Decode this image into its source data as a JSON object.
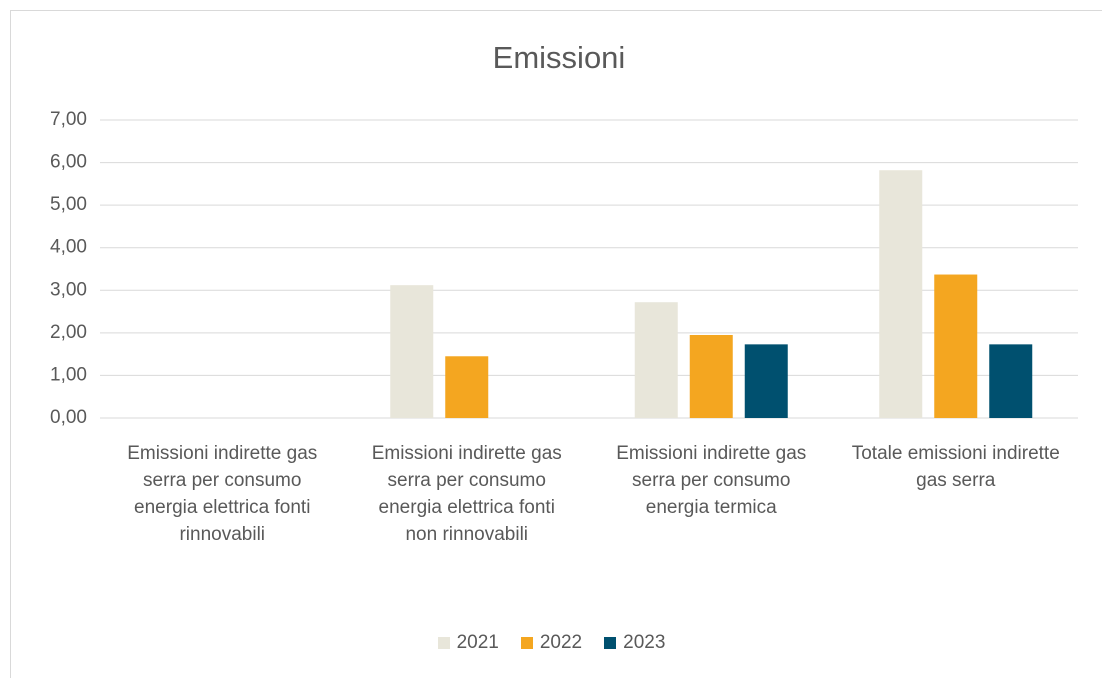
{
  "chart_data": {
    "type": "bar",
    "title": "Emissioni",
    "categories": [
      "Emissioni indirette gas serra per consumo energia elettrica fonti rinnovabili",
      "Emissioni indirette gas serra per consumo energia elettrica fonti non rinnovabili",
      "Emissioni indirette gas serra per consumo energia termica",
      "Totale emissioni indirette gas serra"
    ],
    "series": [
      {
        "name": "2021",
        "color": "#e8e6da",
        "values": [
          0,
          3.12,
          2.72,
          5.82
        ]
      },
      {
        "name": "2022",
        "color": "#f4a620",
        "values": [
          0,
          1.45,
          1.95,
          3.37
        ]
      },
      {
        "name": "2023",
        "color": "#00506f",
        "values": [
          0,
          0,
          1.73,
          1.73
        ]
      }
    ],
    "ylim": [
      0,
      7
    ],
    "yticks": [
      {
        "value": 0,
        "label": "0,00"
      },
      {
        "value": 1,
        "label": "1,00"
      },
      {
        "value": 2,
        "label": "2,00"
      },
      {
        "value": 3,
        "label": "3,00"
      },
      {
        "value": 4,
        "label": "4,00"
      },
      {
        "value": 5,
        "label": "5,00"
      },
      {
        "value": 6,
        "label": "6,00"
      },
      {
        "value": 7,
        "label": "7,00"
      }
    ],
    "grid": true,
    "legend": "bottom"
  }
}
